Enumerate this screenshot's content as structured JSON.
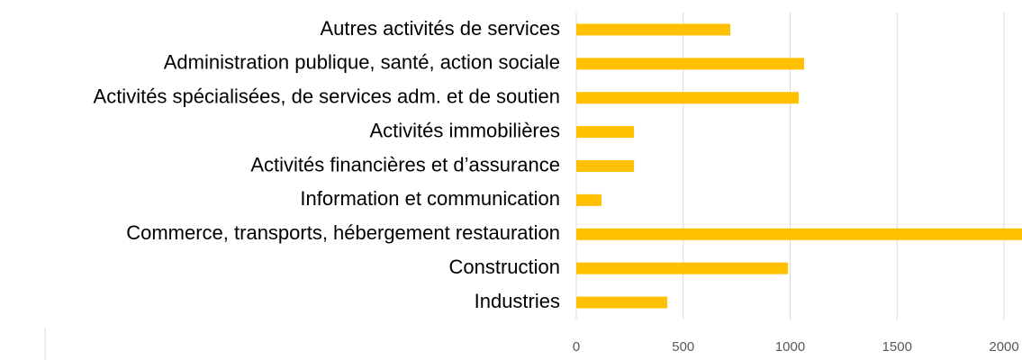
{
  "chart_data": {
    "type": "bar",
    "orientation": "horizontal",
    "categories": [
      "Autres activités de services",
      "Administration publique, santé, action sociale",
      "Activités spécialisées, de services adm. et de soutien",
      "Activités immobilières",
      "Activités financières et d’assurance",
      "Information et communication",
      "Commerce, transports, hébergement restauration",
      "Construction",
      "Industries"
    ],
    "values": [
      720,
      1065,
      1040,
      270,
      270,
      118,
      2150,
      990,
      425
    ],
    "color": "#ffc000",
    "xlim": [
      0,
      2084
    ],
    "xticks": [
      0,
      500,
      1000,
      1500,
      2000
    ],
    "grid": true
  }
}
